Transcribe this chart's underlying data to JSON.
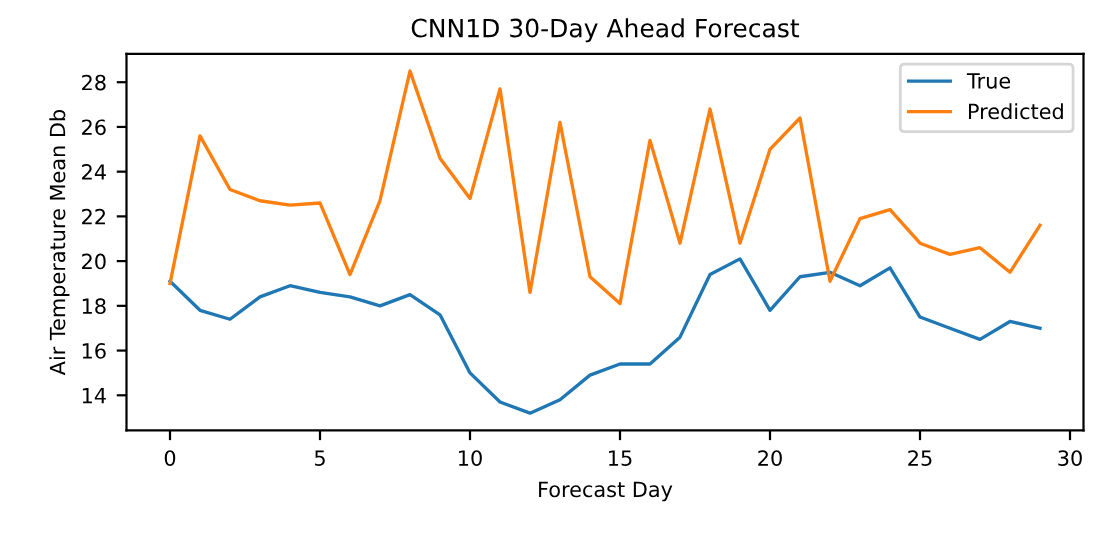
{
  "chart_data": {
    "type": "line",
    "title": "CNN1D 30-Day Ahead Forecast",
    "xlabel": "Forecast Day",
    "ylabel": "Air Temperature Mean Db",
    "x": [
      0,
      1,
      2,
      3,
      4,
      5,
      6,
      7,
      8,
      9,
      10,
      11,
      12,
      13,
      14,
      15,
      16,
      17,
      18,
      19,
      20,
      21,
      22,
      23,
      24,
      25,
      26,
      27,
      28,
      29
    ],
    "series": [
      {
        "name": "True",
        "color": "#1f77b4",
        "values": [
          19.1,
          17.8,
          17.4,
          18.4,
          18.9,
          18.6,
          18.4,
          18.0,
          18.5,
          17.6,
          15.0,
          13.7,
          13.2,
          13.8,
          14.9,
          15.4,
          15.4,
          16.6,
          19.4,
          20.1,
          17.8,
          19.3,
          19.5,
          18.9,
          19.7,
          17.5,
          17.0,
          16.5,
          17.3,
          17.0
        ]
      },
      {
        "name": "Predicted",
        "color": "#ff7f0e",
        "values": [
          19.0,
          25.6,
          23.2,
          22.7,
          22.5,
          22.6,
          19.4,
          22.7,
          28.5,
          24.6,
          22.8,
          27.7,
          18.6,
          26.2,
          19.3,
          18.1,
          25.4,
          20.8,
          26.8,
          20.8,
          25.0,
          26.4,
          19.1,
          21.9,
          22.3,
          20.8,
          20.3,
          20.6,
          19.5,
          21.6
        ]
      }
    ],
    "xlim": [
      -1.45,
      30.45
    ],
    "ylim": [
      12.43,
      29.27
    ],
    "xticks": [
      0,
      5,
      10,
      15,
      20,
      25,
      30
    ],
    "yticks": [
      14,
      16,
      18,
      20,
      22,
      24,
      26,
      28
    ],
    "legend": "top right",
    "grid": false
  }
}
